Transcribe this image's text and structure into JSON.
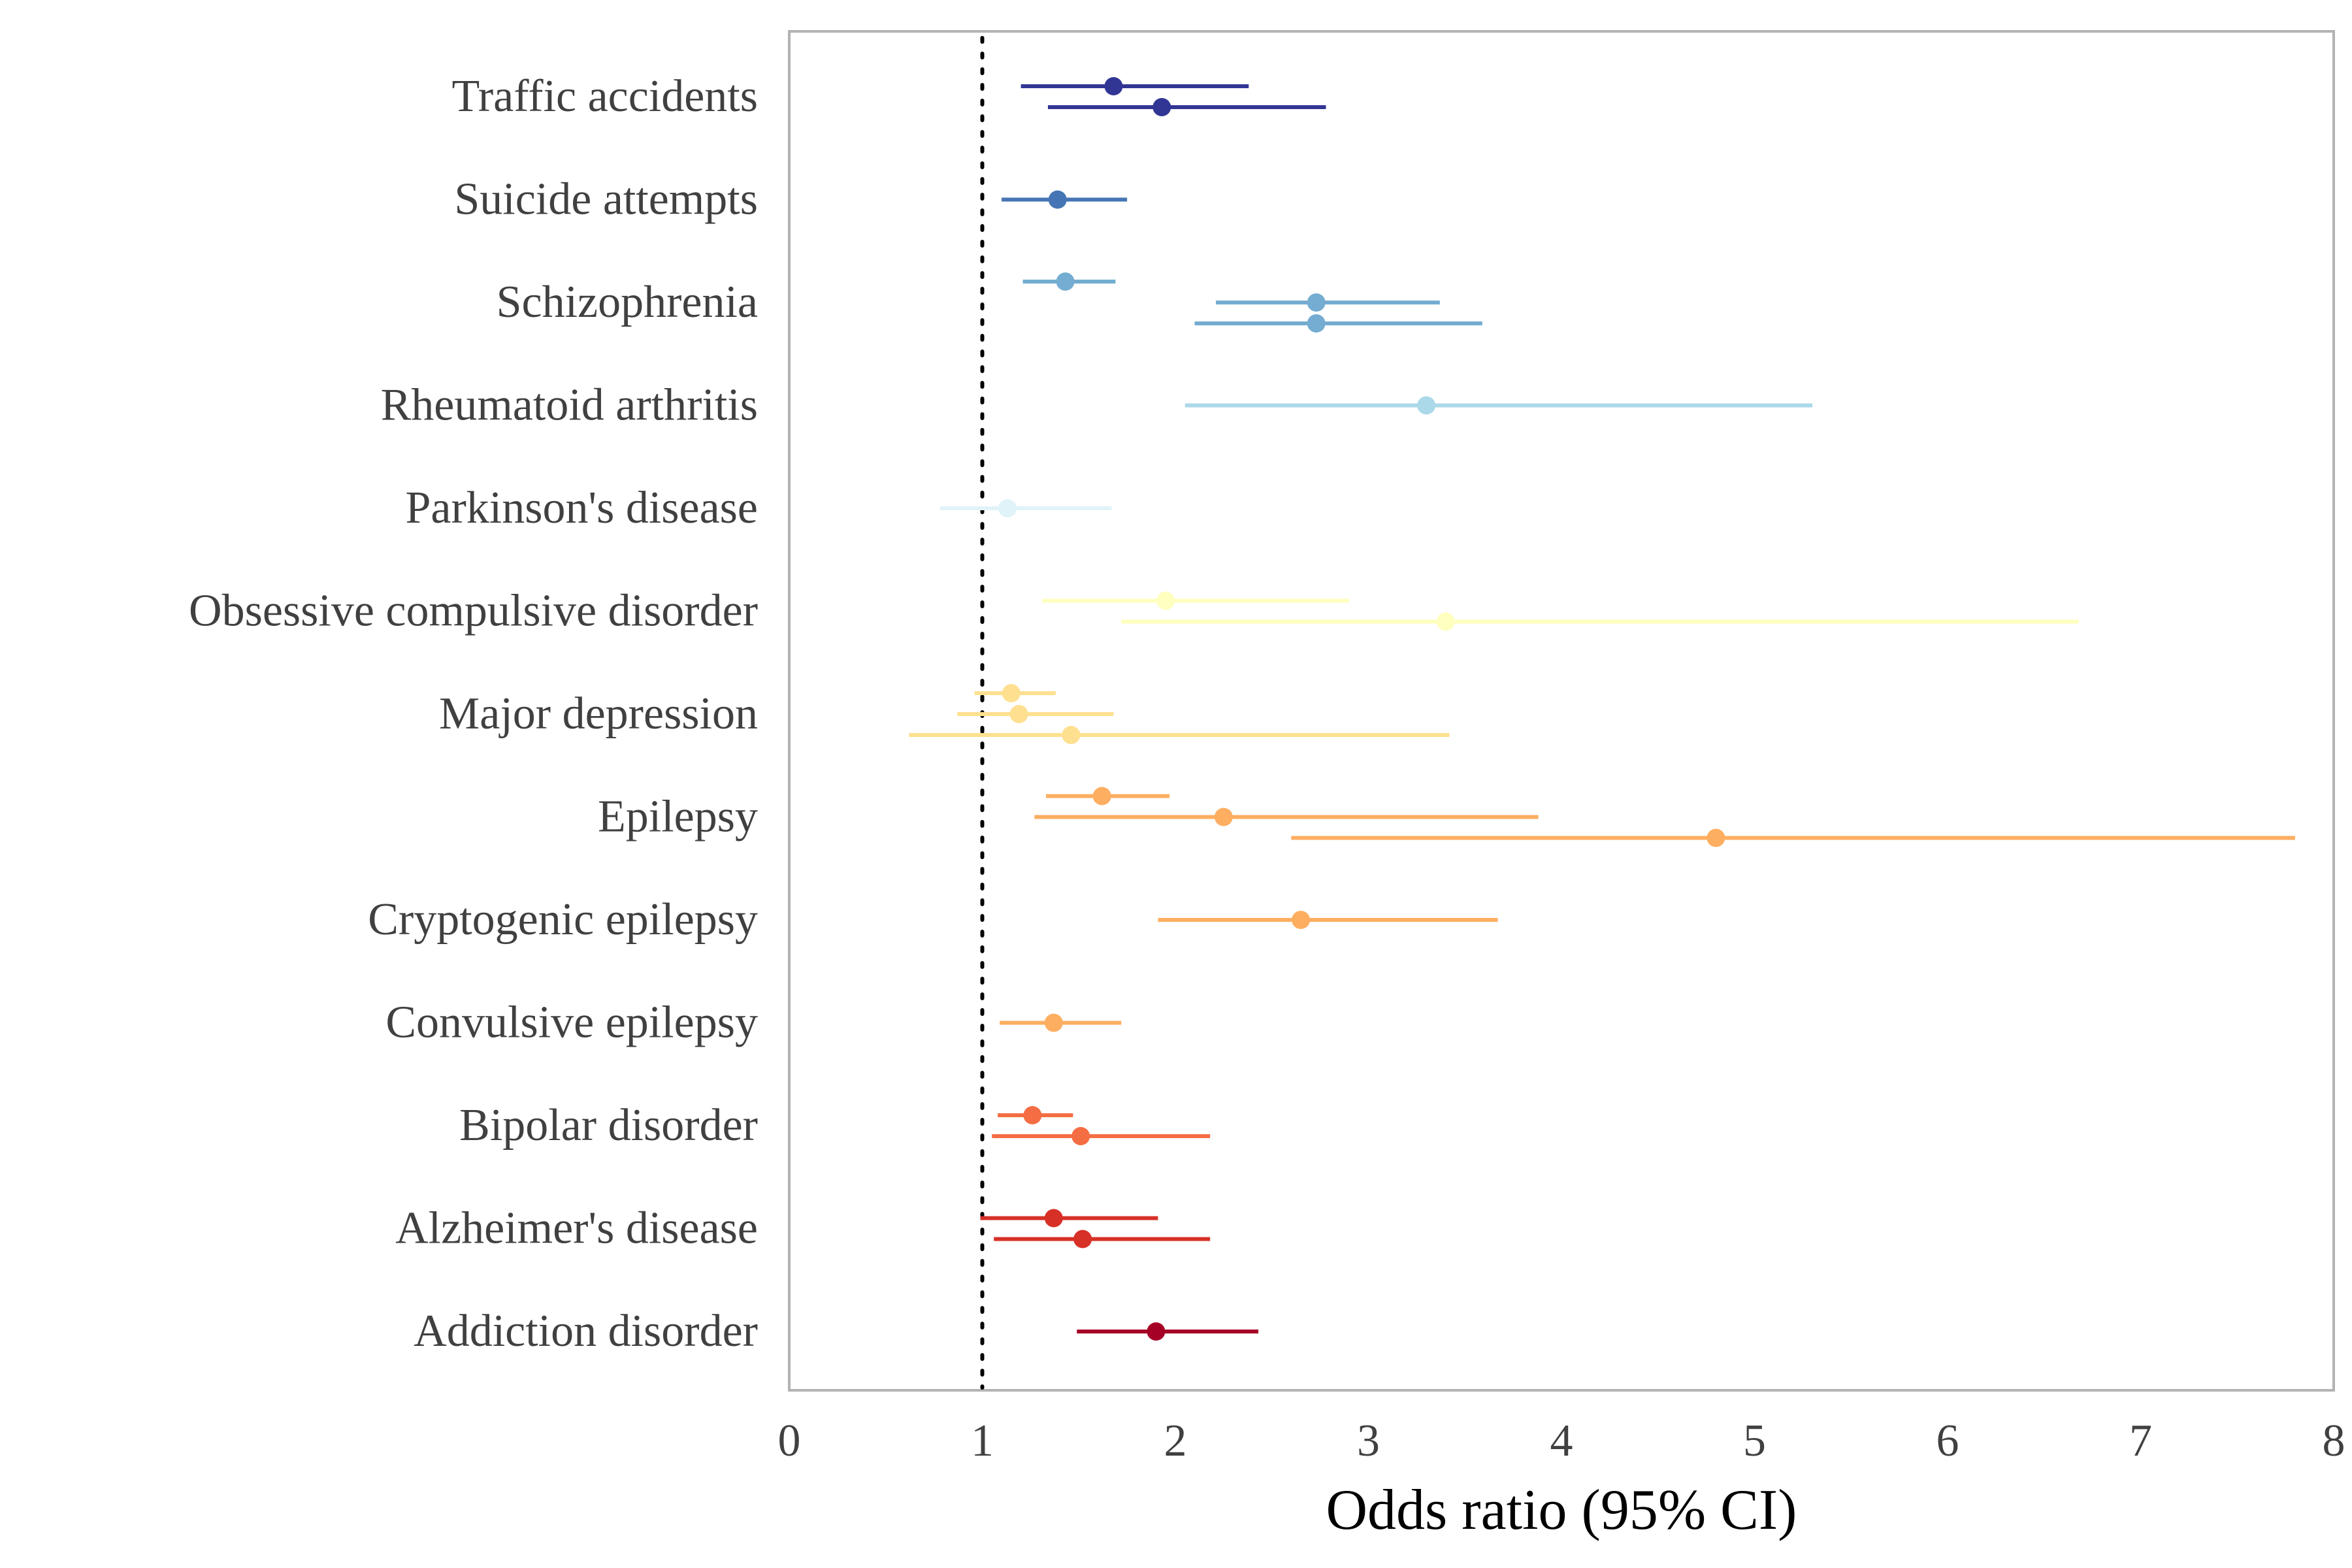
{
  "chart_data": {
    "type": "forest",
    "xlabel": "Odds ratio (95% CI)",
    "xlim": [
      0,
      8
    ],
    "xticks": [
      0,
      1,
      2,
      3,
      4,
      5,
      6,
      7,
      8
    ],
    "reference_line": 1,
    "grid": false,
    "legend": "none",
    "categories": [
      {
        "name": "Traffic accidents",
        "color": "#313695",
        "estimates": [
          {
            "or": 1.68,
            "lo": 1.2,
            "hi": 2.38
          },
          {
            "or": 1.93,
            "lo": 1.34,
            "hi": 2.78
          }
        ]
      },
      {
        "name": "Suicide attempts",
        "color": "#4575b4",
        "estimates": [
          {
            "or": 1.39,
            "lo": 1.1,
            "hi": 1.75
          }
        ]
      },
      {
        "name": "Schizophrenia",
        "color": "#74add1",
        "estimates": [
          {
            "or": 1.43,
            "lo": 1.21,
            "hi": 1.69
          },
          {
            "or": 2.73,
            "lo": 2.21,
            "hi": 3.37
          },
          {
            "or": 2.73,
            "lo": 2.1,
            "hi": 3.59
          }
        ]
      },
      {
        "name": "Rheumatoid arthritis",
        "color": "#abd9e9",
        "estimates": [
          {
            "or": 3.3,
            "lo": 2.05,
            "hi": 5.3
          }
        ]
      },
      {
        "name": "Parkinson's disease",
        "color": "#e0f3f8",
        "estimates": [
          {
            "or": 1.13,
            "lo": 0.78,
            "hi": 1.67
          }
        ]
      },
      {
        "name": "Obsessive compulsive disorder",
        "color": "#ffffbf",
        "estimates": [
          {
            "or": 1.95,
            "lo": 1.31,
            "hi": 2.9
          },
          {
            "or": 3.4,
            "lo": 1.72,
            "hi": 6.68
          }
        ]
      },
      {
        "name": "Major depression",
        "color": "#fee090",
        "estimates": [
          {
            "or": 1.15,
            "lo": 0.96,
            "hi": 1.38
          },
          {
            "or": 1.19,
            "lo": 0.87,
            "hi": 1.68
          },
          {
            "or": 1.46,
            "lo": 0.62,
            "hi": 3.42
          }
        ]
      },
      {
        "name": "Epilepsy",
        "color": "#fdae61",
        "estimates": [
          {
            "or": 1.62,
            "lo": 1.33,
            "hi": 1.97
          },
          {
            "or": 2.25,
            "lo": 1.27,
            "hi": 3.88
          },
          {
            "or": 4.8,
            "lo": 2.6,
            "hi": 7.8
          }
        ]
      },
      {
        "name": "Cryptogenic epilepsy",
        "color": "#fdae61",
        "estimates": [
          {
            "or": 2.65,
            "lo": 1.91,
            "hi": 3.67
          }
        ]
      },
      {
        "name": "Convulsive epilepsy",
        "color": "#fdae61",
        "estimates": [
          {
            "or": 1.37,
            "lo": 1.09,
            "hi": 1.72
          }
        ]
      },
      {
        "name": "Bipolar disorder",
        "color": "#f46d43",
        "estimates": [
          {
            "or": 1.26,
            "lo": 1.08,
            "hi": 1.47
          },
          {
            "or": 1.51,
            "lo": 1.05,
            "hi": 2.18
          }
        ]
      },
      {
        "name": "Alzheimer's disease",
        "color": "#d73027",
        "estimates": [
          {
            "or": 1.37,
            "lo": 0.99,
            "hi": 1.91
          },
          {
            "or": 1.52,
            "lo": 1.06,
            "hi": 2.18
          }
        ]
      },
      {
        "name": "Addiction disorder",
        "color": "#a50026",
        "estimates": [
          {
            "or": 1.9,
            "lo": 1.49,
            "hi": 2.43
          }
        ]
      }
    ]
  }
}
